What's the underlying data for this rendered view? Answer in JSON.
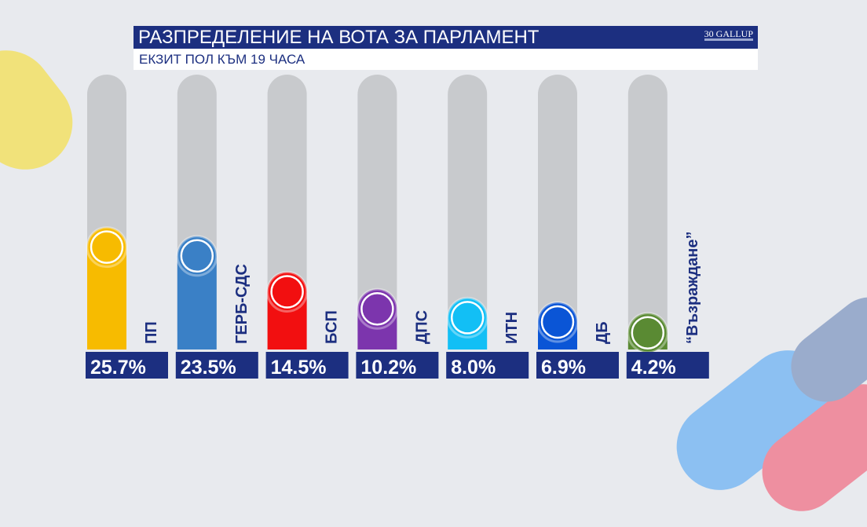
{
  "header": {
    "title": "РАЗПРЕДЕЛЕНИЕ НА ВОТА ЗА ПАРЛАМЕНТ",
    "subtitle": "ЕКЗИТ ПОЛ КЪМ 19 ЧАСА",
    "logo": "30 GALLUP"
  },
  "chart_data": {
    "type": "bar",
    "title": "РАЗПРЕДЕЛЕНИЕ НА ВОТА ЗА ПАРЛАМЕНТ",
    "subtitle": "ЕКЗИТ ПОЛ КЪМ 19 ЧАСА",
    "categories": [
      "ПП",
      "ГЕРБ-СДС",
      "БСП",
      "ДПС",
      "ИТН",
      "ДБ",
      "“Възраждане”"
    ],
    "values": [
      25.7,
      23.5,
      14.5,
      10.2,
      8.0,
      6.9,
      4.2
    ],
    "value_labels": [
      "25.7%",
      "23.5%",
      "14.5%",
      "10.2%",
      "8.0%",
      "6.9%",
      "4.2%"
    ],
    "colors": [
      "#f7bb00",
      "#3a80c6",
      "#f20f10",
      "#7c35ad",
      "#12bff5",
      "#0a55d6",
      "#5a8a33"
    ],
    "unit": "%",
    "grid": false,
    "ylim": [
      0,
      69
    ]
  },
  "colors": {
    "navy": "#1c2f80",
    "track": "#c8cacd",
    "background": "#e8eaee"
  }
}
